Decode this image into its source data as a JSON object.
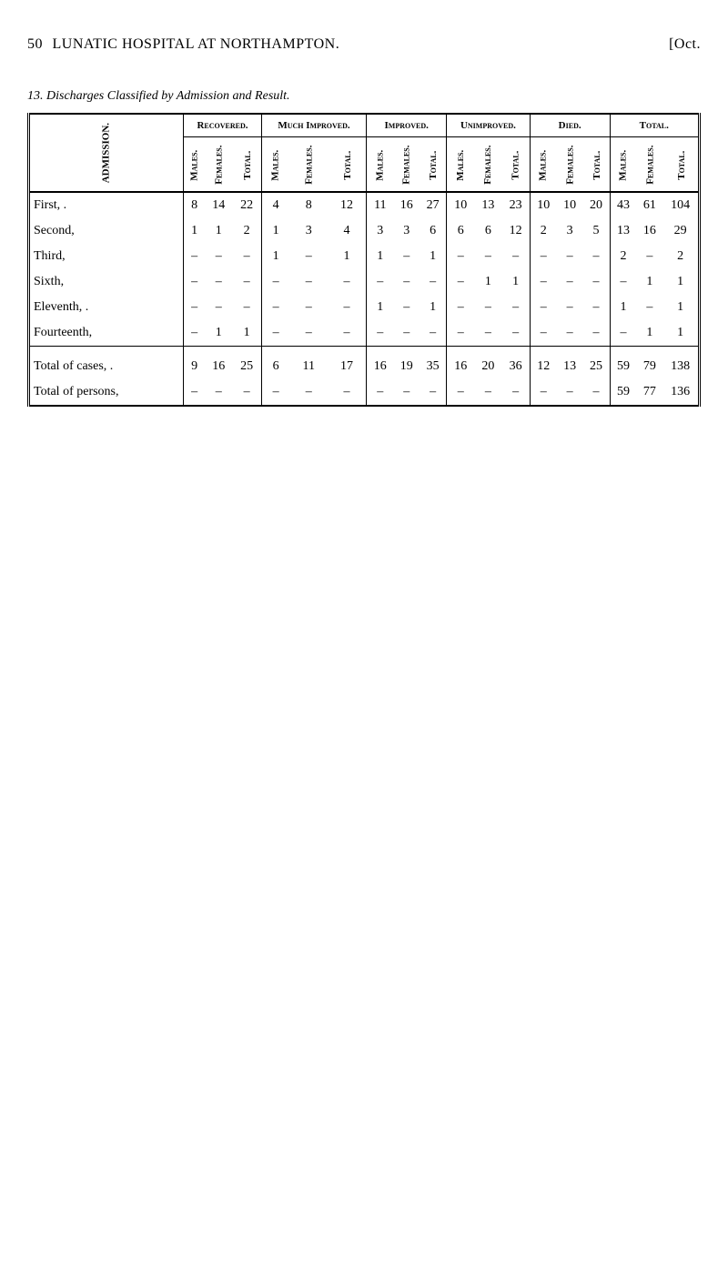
{
  "header": {
    "page_number": "50",
    "title": "LUNATIC HOSPITAL AT NORTHAMPTON.",
    "date_marker": "[Oct."
  },
  "table_title": "13. Discharges Classified by Admission and Result.",
  "labels": {
    "admission": "ADMISSION.",
    "recovered": "Recovered.",
    "much_improved": "Much Improved.",
    "improved": "Improved.",
    "unimproved": "Unimproved.",
    "died": "Died.",
    "total_group": "Total.",
    "males": "Males.",
    "females": "Females.",
    "total": "Total.",
    "total_cases": "Total of cases,",
    "total_persons": "Total of persons,"
  },
  "rows": {
    "first": {
      "label": "First, .",
      "rec": {
        "m": "8",
        "f": "14",
        "t": "22"
      },
      "mimp": {
        "m": "4",
        "f": "8",
        "t": "12"
      },
      "imp": {
        "m": "11",
        "f": "16",
        "t": "27"
      },
      "unimp": {
        "m": "10",
        "f": "13",
        "t": "23"
      },
      "died": {
        "m": "10",
        "f": "10",
        "t": "20"
      },
      "tot": {
        "m": "43",
        "f": "61",
        "t": "104"
      }
    },
    "second": {
      "label": "Second,",
      "rec": {
        "m": "1",
        "f": "1",
        "t": "2"
      },
      "mimp": {
        "m": "1",
        "f": "3",
        "t": "4"
      },
      "imp": {
        "m": "3",
        "f": "3",
        "t": "6"
      },
      "unimp": {
        "m": "6",
        "f": "6",
        "t": "12"
      },
      "died": {
        "m": "2",
        "f": "3",
        "t": "5"
      },
      "tot": {
        "m": "13",
        "f": "16",
        "t": "29"
      }
    },
    "third": {
      "label": "Third,",
      "rec": {
        "m": "–",
        "f": "–",
        "t": "–"
      },
      "mimp": {
        "m": "1",
        "f": "–",
        "t": "1"
      },
      "imp": {
        "m": "1",
        "f": "–",
        "t": "1"
      },
      "unimp": {
        "m": "–",
        "f": "–",
        "t": "–"
      },
      "died": {
        "m": "–",
        "f": "–",
        "t": "–"
      },
      "tot": {
        "m": "2",
        "f": "–",
        "t": "2"
      }
    },
    "sixth": {
      "label": "Sixth,",
      "rec": {
        "m": "–",
        "f": "–",
        "t": "–"
      },
      "mimp": {
        "m": "–",
        "f": "–",
        "t": "–"
      },
      "imp": {
        "m": "–",
        "f": "–",
        "t": "–"
      },
      "unimp": {
        "m": "–",
        "f": "1",
        "t": "1"
      },
      "died": {
        "m": "–",
        "f": "–",
        "t": "–"
      },
      "tot": {
        "m": "–",
        "f": "1",
        "t": "1"
      }
    },
    "eleventh": {
      "label": "Eleventh, .",
      "rec": {
        "m": "–",
        "f": "–",
        "t": "–"
      },
      "mimp": {
        "m": "–",
        "f": "–",
        "t": "–"
      },
      "imp": {
        "m": "1",
        "f": "–",
        "t": "1"
      },
      "unimp": {
        "m": "–",
        "f": "–",
        "t": "–"
      },
      "died": {
        "m": "–",
        "f": "–",
        "t": "–"
      },
      "tot": {
        "m": "1",
        "f": "–",
        "t": "1"
      }
    },
    "fourteenth": {
      "label": "Fourteenth,",
      "rec": {
        "m": "–",
        "f": "1",
        "t": "1"
      },
      "mimp": {
        "m": "–",
        "f": "–",
        "t": "–"
      },
      "imp": {
        "m": "–",
        "f": "–",
        "t": "–"
      },
      "unimp": {
        "m": "–",
        "f": "–",
        "t": "–"
      },
      "died": {
        "m": "–",
        "f": "–",
        "t": "–"
      },
      "tot": {
        "m": "–",
        "f": "1",
        "t": "1"
      }
    },
    "tot_cases": {
      "rec": {
        "m": "9",
        "f": "16",
        "t": "25"
      },
      "mimp": {
        "m": "6",
        "f": "11",
        "t": "17"
      },
      "imp": {
        "m": "16",
        "f": "19",
        "t": "35"
      },
      "unimp": {
        "m": "16",
        "f": "20",
        "t": "36"
      },
      "died": {
        "m": "12",
        "f": "13",
        "t": "25"
      },
      "tot": {
        "m": "59",
        "f": "79",
        "t": "138"
      }
    },
    "tot_persons": {
      "rec": {
        "m": "–",
        "f": "–",
        "t": "–"
      },
      "mimp": {
        "m": "–",
        "f": "–",
        "t": "–"
      },
      "imp": {
        "m": "–",
        "f": "–",
        "t": "–"
      },
      "unimp": {
        "m": "–",
        "f": "–",
        "t": "–"
      },
      "died": {
        "m": "–",
        "f": "–",
        "t": "–"
      },
      "tot": {
        "m": "59",
        "f": "77",
        "t": "136"
      }
    }
  }
}
